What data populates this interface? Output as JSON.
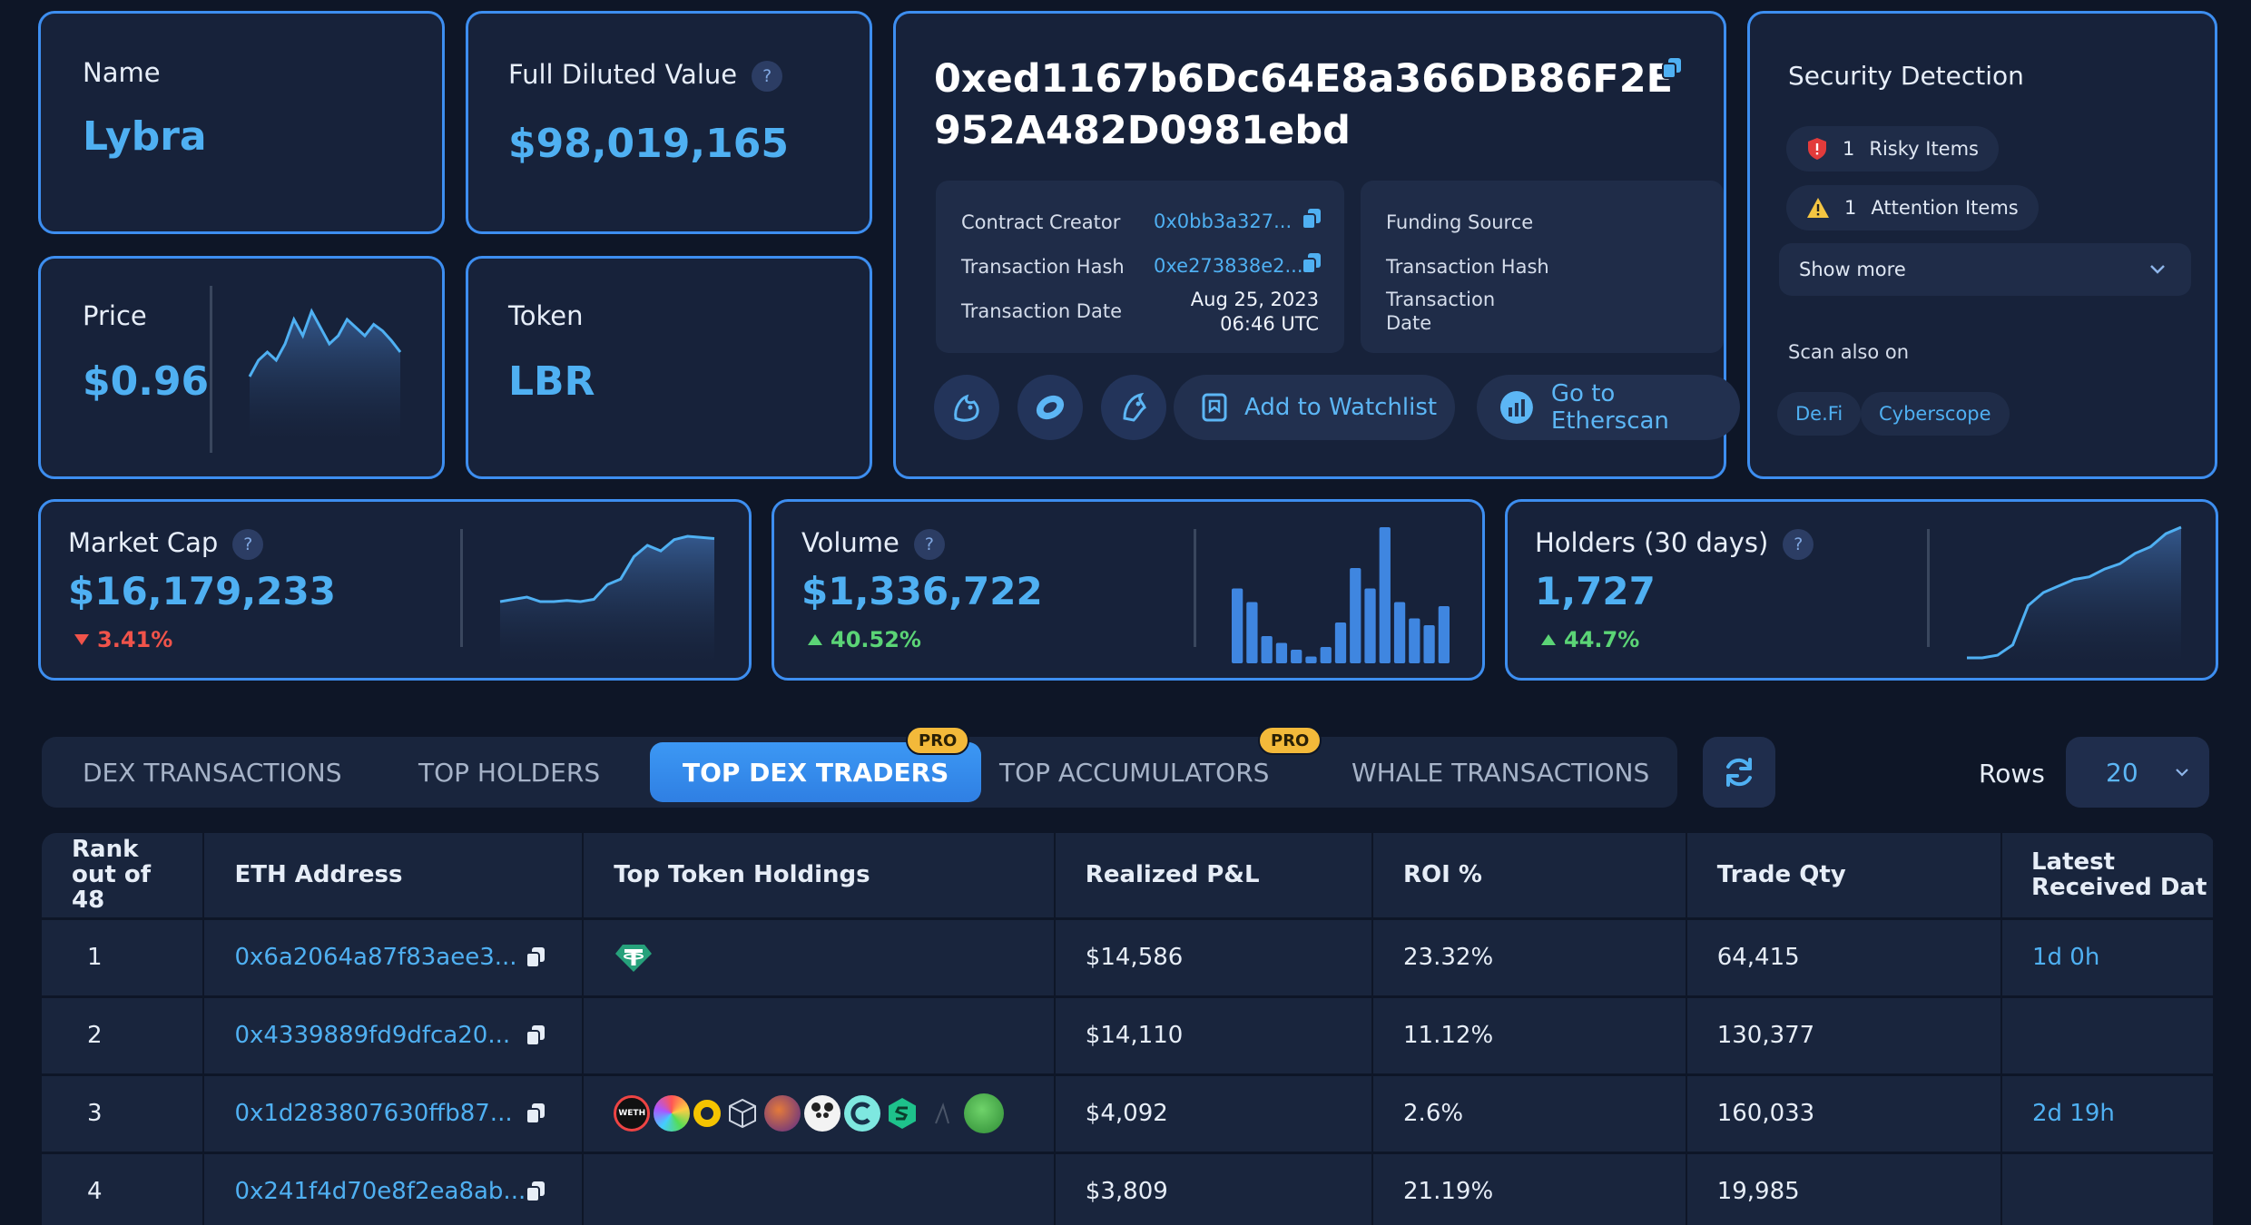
{
  "name_card": {
    "label": "Name",
    "value": "Lybra"
  },
  "fdv_card": {
    "label": "Full Diluted Value",
    "value": "$98,019,165",
    "help": "?"
  },
  "price_card": {
    "label": "Price",
    "value": "$0.96"
  },
  "token_card": {
    "label": "Token",
    "value": "LBR"
  },
  "contract": {
    "address": "0xed1167b6Dc64E8a366DB86F2E952A482D0981ebd",
    "creator_label": "Contract Creator",
    "creator_value": "0x0bb3a327...",
    "tx_hash_label": "Transaction Hash",
    "tx_hash_value": "0xe273838e2...",
    "tx_date_label": "Transaction Date",
    "tx_date_value": "Aug 25, 2023",
    "tx_time_value": "06:46 UTC",
    "funding_label": "Funding Source",
    "funding_tx_hash_label": "Transaction Hash",
    "funding_tx_date_label": "Transaction Date",
    "watchlist_label": "Add to Watchlist",
    "etherscan_label": "Go to Etherscan"
  },
  "security": {
    "title": "Security Detection",
    "risky_count": "1",
    "risky_label": "Risky Items",
    "attention_count": "1",
    "attention_label": "Attention Items",
    "show_more": "Show more",
    "scan_also": "Scan also on",
    "link_defi": "De.Fi",
    "link_cyberscope": "Cyberscope"
  },
  "stats": {
    "market_cap": {
      "label": "Market Cap",
      "value": "$16,179,233",
      "change": "3.41%",
      "direction": "down",
      "help": "?"
    },
    "volume": {
      "label": "Volume",
      "value": "$1,336,722",
      "change": "40.52%",
      "direction": "up",
      "help": "?"
    },
    "holders": {
      "label": "Holders (30 days)",
      "value": "1,727",
      "change": "44.7%",
      "direction": "up",
      "help": "?"
    }
  },
  "tabs": [
    {
      "label": "DEX TRANSACTIONS",
      "active": false,
      "pro": false
    },
    {
      "label": "TOP HOLDERS",
      "active": false,
      "pro": false
    },
    {
      "label": "TOP DEX TRADERS",
      "active": true,
      "pro": true
    },
    {
      "label": "TOP ACCUMULATORS",
      "active": false,
      "pro": true
    },
    {
      "label": "WHALE TRANSACTIONS",
      "active": false,
      "pro": false
    }
  ],
  "pro_badge": "PRO",
  "rows_label": "Rows",
  "rows_value": "20",
  "table": {
    "columns": [
      "Rank out of 48",
      "ETH Address",
      "Top Token Holdings",
      "Realized P&L",
      "ROI %",
      "Trade Qty",
      "Latest Received Dat"
    ],
    "rows": [
      {
        "rank": "1",
        "address": "0x6a2064a87f83aee3...",
        "pnl": "$14,586",
        "roi": "23.32%",
        "qty": "64,415",
        "latest": "1d 0h"
      },
      {
        "rank": "2",
        "address": "0x4339889fd9dfca20...",
        "pnl": "$14,110",
        "roi": "11.12%",
        "qty": "130,377",
        "latest": ""
      },
      {
        "rank": "3",
        "address": "0x1d283807630ffb87...",
        "pnl": "$4,092",
        "roi": "2.6%",
        "qty": "160,033",
        "latest": "2d 19h"
      },
      {
        "rank": "4",
        "address": "0x241f4d70e8f2ea8ab...",
        "pnl": "$3,809",
        "roi": "21.19%",
        "qty": "19,985",
        "latest": ""
      }
    ],
    "token_weth": "WETH"
  },
  "sparklines": {
    "price": [
      0.93,
      0.94,
      0.945,
      0.94,
      0.95,
      0.965,
      0.955,
      0.97,
      0.96,
      0.95,
      0.955,
      0.965,
      0.96,
      0.955,
      0.962,
      0.958,
      0.952,
      0.945
    ],
    "market_cap": [
      15.6,
      15.62,
      15.64,
      15.6,
      15.6,
      15.61,
      15.6,
      15.62,
      15.75,
      15.8,
      16.0,
      16.1,
      16.05,
      16.15,
      16.18,
      16.17,
      16.16
    ],
    "volume": [
      0.55,
      0.45,
      0.2,
      0.15,
      0.1,
      0.05,
      0.12,
      0.3,
      0.7,
      0.55,
      1.0,
      0.45,
      0.33,
      0.28,
      0.42
    ],
    "holders": [
      0,
      0,
      0.02,
      0.1,
      0.4,
      0.5,
      0.55,
      0.6,
      0.62,
      0.68,
      0.72,
      0.8,
      0.85,
      0.95,
      1.0
    ]
  },
  "colors": {
    "accent": "#4fb0f2",
    "border": "#3d8ef0",
    "up": "#5bd476",
    "down": "#f0534a",
    "pro": "#f3b93a"
  }
}
